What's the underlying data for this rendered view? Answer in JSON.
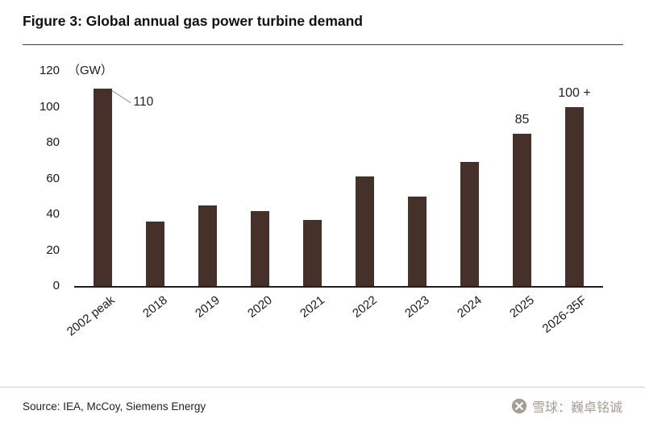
{
  "chart_data": {
    "type": "bar",
    "title": "Figure 3: Global annual gas power turbine demand",
    "unit_label": "（GW）",
    "categories": [
      "2002 peak",
      "2018",
      "2019",
      "2020",
      "2021",
      "2022",
      "2023",
      "2024",
      "2025",
      "2026-35F"
    ],
    "values": [
      110,
      36,
      45,
      42,
      37,
      61,
      50,
      69,
      85,
      100
    ],
    "ylim": [
      0,
      120
    ],
    "yticks": [
      0,
      20,
      40,
      60,
      80,
      100,
      120
    ],
    "bar_color": "#46312a",
    "grid": false,
    "legend": "none",
    "annotations": [
      {
        "category": "2002 peak",
        "text": "110",
        "style": "callout"
      },
      {
        "category": "2025",
        "text": "85",
        "style": "above"
      },
      {
        "category": "2026-35F",
        "text": "100 +",
        "style": "above"
      }
    ]
  },
  "footer": {
    "source": "Source: IEA, McCoy, Siemens Energy"
  },
  "watermark": {
    "icon": "xueqiu-logo",
    "text": "雪球：巍卓铭诚",
    "color": "#a59e96"
  }
}
